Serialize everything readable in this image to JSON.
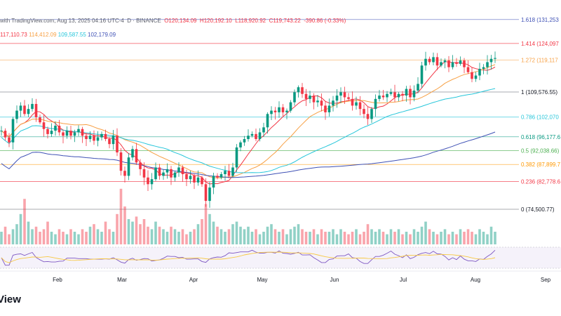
{
  "header": {
    "publish_text": "with TradingView.com, Aug 13, 2025 04:16 UTC-4",
    "symbol_text": "D · BINANCE",
    "ohlc": {
      "open": "O120,134.09",
      "high": "H120,192.10",
      "low": "L118,920.92",
      "close": "C119,743.22",
      "change": "-390.86 (-0.33%)"
    },
    "ma_values": [
      {
        "text": "117,110.73",
        "color": "#f23645"
      },
      {
        "text": "114,412.09",
        "color": "#f7a044"
      },
      {
        "text": "109,587.55",
        "color": "#26c6da"
      },
      {
        "text": "102,179.09",
        "color": "#3f51b5"
      }
    ]
  },
  "brand": "View",
  "chart_data": {
    "type": "candlestick",
    "x_ticks": [
      "Feb",
      "Mar",
      "Apr",
      "May",
      "Jun",
      "Jul",
      "Aug",
      "Sep"
    ],
    "fib_levels": [
      {
        "ratio": 1.618,
        "label": "1.618 (131,253",
        "color": "#3f51b5"
      },
      {
        "ratio": 1.414,
        "label": "1.414 (124,097",
        "color": "#f23645"
      },
      {
        "ratio": 1.272,
        "label": "1.272 (119,117",
        "color": "#f7a044"
      },
      {
        "ratio": 1,
        "label": "1 (109,576.55)",
        "color": "#787b86"
      },
      {
        "ratio": 0.786,
        "label": "0.786 (102,070",
        "color": "#26c6da"
      },
      {
        "ratio": 0.618,
        "label": "0.618 (96,177.6",
        "color": "#089981"
      },
      {
        "ratio": 0.5,
        "label": "0.5 (92,038.66)",
        "color": "#4caf50"
      },
      {
        "ratio": 0.382,
        "label": "0.382 (87,899.7",
        "color": "#ff9800"
      },
      {
        "ratio": 0.236,
        "label": "0.236 (82,778.6",
        "color": "#f23645"
      },
      {
        "ratio": 0,
        "label": "0 (74,500.77)",
        "color": "#787b86"
      }
    ],
    "price_anchors": {
      "p100": 109576.55,
      "p0": 74500.77
    },
    "series_colors": {
      "up": "#089981",
      "down": "#f23645",
      "ma_short": "#f23645",
      "ma_mid": "#f7a044",
      "ma_long": "#26c6da",
      "ma_longest": "#3f51b5",
      "rsi": "#7e57c2",
      "rsi_ma": "#f7c844"
    },
    "close_path": [
      98000,
      96000,
      94500,
      101500,
      104000,
      105500,
      103000,
      104500,
      106000,
      102000,
      100500,
      98500,
      97000,
      98000,
      99500,
      97500,
      96500,
      98000,
      96500,
      97500,
      98500,
      96500,
      95500,
      96500,
      95000,
      96000,
      97000,
      95500,
      94000,
      96500,
      91500,
      86000,
      84500,
      90000,
      92500,
      88500,
      86500,
      84000,
      82000,
      83500,
      87000,
      84500,
      85500,
      86500,
      84000,
      85500,
      87000,
      85000,
      83500,
      84500,
      82500,
      84000,
      82000,
      77000,
      81000,
      84500,
      84000,
      85000,
      86000,
      84500,
      87000,
      93000,
      94500,
      95500,
      96500,
      97000,
      95500,
      97500,
      99000,
      103000,
      104000,
      103500,
      105000,
      103500,
      104000,
      106500,
      109500,
      111000,
      109000,
      107500,
      108500,
      106500,
      107000,
      105500,
      103500,
      105500,
      107000,
      108500,
      109500,
      108000,
      107500,
      105500,
      106500,
      104500,
      103000,
      101500,
      104500,
      107500,
      108500,
      108000,
      109000,
      109500,
      108000,
      109000,
      108500,
      110500,
      108000,
      110000,
      112000,
      117500,
      119500,
      118500,
      120000,
      117500,
      118500,
      119000,
      117000,
      118500,
      118000,
      119000,
      117000,
      115500,
      113500,
      114500,
      116500,
      117000,
      118500,
      119500,
      119743
    ],
    "volume": [
      5,
      7,
      4,
      6,
      8,
      12,
      18,
      9,
      6,
      7,
      5,
      6,
      9,
      5,
      4,
      6,
      5,
      4,
      6,
      5,
      4,
      6,
      5,
      7,
      8,
      6,
      5,
      9,
      6,
      5,
      12,
      22,
      15,
      10,
      9,
      11,
      8,
      10,
      7,
      6,
      9,
      7,
      6,
      5,
      7,
      6,
      5,
      6,
      4,
      5,
      6,
      8,
      10,
      16,
      12,
      9,
      7,
      6,
      5,
      6,
      8,
      9,
      7,
      6,
      7,
      5,
      6,
      4,
      5,
      7,
      8,
      6,
      5,
      6,
      4,
      6,
      7,
      8,
      6,
      5,
      5,
      6,
      4,
      6,
      5,
      5,
      6,
      4,
      6,
      5,
      4,
      5,
      6,
      4,
      5,
      8,
      6,
      5,
      6,
      5,
      4,
      6,
      5,
      6,
      4,
      5,
      4,
      6,
      5,
      7,
      9,
      6,
      5,
      4,
      5,
      6,
      4,
      5,
      4,
      6,
      5,
      6,
      5,
      4,
      6,
      5,
      4,
      7,
      5
    ]
  }
}
